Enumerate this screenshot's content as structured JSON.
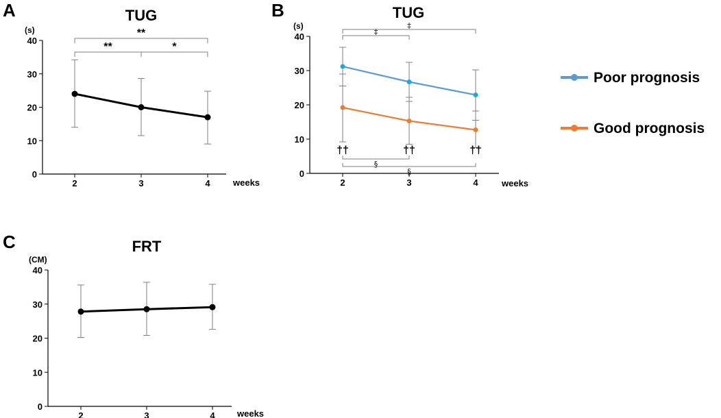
{
  "figure": {
    "panels": [
      {
        "id": "A",
        "letter": "A"
      },
      {
        "id": "B",
        "letter": "B"
      },
      {
        "id": "C",
        "letter": "C"
      }
    ]
  },
  "chart_data": [
    {
      "panel": "A",
      "type": "line",
      "title": "TUG",
      "ylabel": "(s)",
      "xlabel": "weeks",
      "ylim": [
        0,
        40
      ],
      "yticks": [
        0,
        10,
        20,
        30,
        40
      ],
      "categories": [
        "2",
        "3",
        "4"
      ],
      "series": [
        {
          "name": "TUG",
          "color": "#000000",
          "values": [
            24,
            20,
            17
          ],
          "err_low": [
            14,
            11.5,
            9
          ],
          "err_high": [
            34.2,
            28.6,
            24.8
          ]
        }
      ],
      "annotations": [
        {
          "label": "**",
          "from": "2",
          "to": "4",
          "level": 1
        },
        {
          "label": "**",
          "from": "2",
          "to": "3",
          "level": 0
        },
        {
          "label": "*",
          "from": "3",
          "to": "4",
          "level": 0
        }
      ]
    },
    {
      "panel": "B",
      "type": "line",
      "title": "TUG",
      "ylabel": "(s)",
      "xlabel": "weeks",
      "ylim": [
        0,
        40
      ],
      "yticks": [
        0,
        10,
        20,
        30,
        40
      ],
      "categories": [
        "2",
        "3",
        "4"
      ],
      "series": [
        {
          "name": "Poor prognosis",
          "color": "#5b9bd5",
          "marker_color": "#1aa9e0",
          "values": [
            31.2,
            26.7,
            22.9
          ],
          "err_low": [
            25.5,
            21,
            15.5
          ],
          "err_high": [
            36.8,
            32.4,
            30.2
          ]
        },
        {
          "name": "Good prognosis",
          "color": "#ed7d31",
          "marker_color": "#ed7d31",
          "values": [
            19.2,
            15.3,
            12.7
          ],
          "err_low": [
            9.2,
            8.5,
            7.5
          ],
          "err_high": [
            29,
            22.2,
            18.2
          ]
        }
      ],
      "annotations_top": [
        {
          "label": "‡",
          "from": "2",
          "to": "3",
          "level": 0
        },
        {
          "label": "‡",
          "from": "2",
          "to": "4",
          "level": 1
        }
      ],
      "annotations_bottom": [
        {
          "label": "§",
          "from": "2",
          "to": "3",
          "level": 0
        },
        {
          "label": "§",
          "from": "2",
          "to": "4",
          "level": 1
        }
      ],
      "point_marks": [
        {
          "label": "††",
          "at": "2"
        },
        {
          "label": "††",
          "at": "3"
        },
        {
          "label": "††",
          "at": "4"
        }
      ],
      "legend": {
        "placement": "right",
        "entries": [
          {
            "label": "Poor prognosis",
            "color": "#5b9bd5"
          },
          {
            "label": "Good prognosis",
            "color": "#ed7d31"
          }
        ]
      }
    },
    {
      "panel": "C",
      "type": "line",
      "title": "FRT",
      "ylabel": "(CM)",
      "xlabel": "weeks",
      "ylim": [
        0,
        40
      ],
      "yticks": [
        0,
        10,
        20,
        30,
        40
      ],
      "categories": [
        "2",
        "3",
        "4"
      ],
      "series": [
        {
          "name": "FRT",
          "color": "#000000",
          "values": [
            27.8,
            28.5,
            29.1
          ],
          "err_low": [
            20.2,
            20.8,
            22.6
          ],
          "err_high": [
            35.6,
            36.4,
            35.8
          ]
        }
      ]
    }
  ]
}
